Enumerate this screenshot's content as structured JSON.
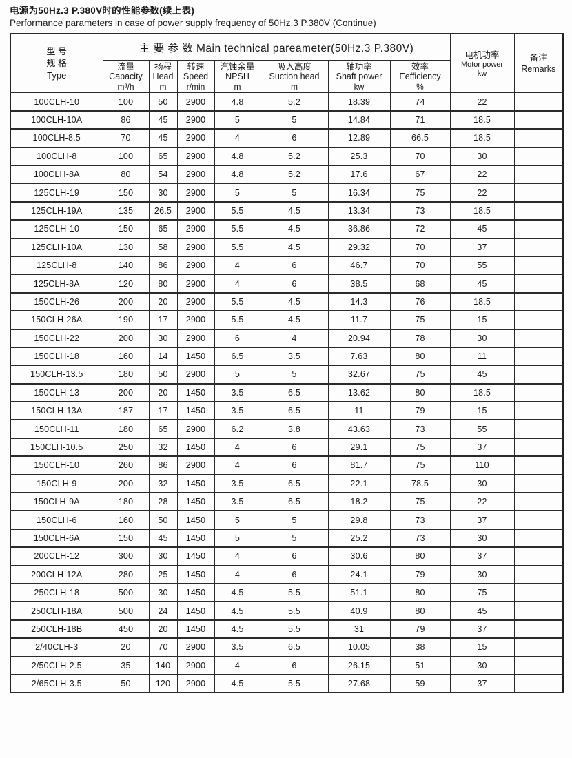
{
  "titles": {
    "zh": "电源为50Hz.3 P.380V时的性能参数(续上表)",
    "en": "Performance parameters in case of power supply frequency of 50Hz.3 P.380V (Continue)"
  },
  "table": {
    "group_header": "主 要 参 数  Main technical pareameter(50Hz.3 P.380V)",
    "type_col": {
      "line1": "型  号",
      "line2": "规  格",
      "line3": "Type"
    },
    "sub_columns": [
      {
        "zh": "流量",
        "en": "Capacity",
        "unit": "m³/h"
      },
      {
        "zh": "扬程",
        "en": "Head",
        "unit": "m"
      },
      {
        "zh": "转速",
        "en": "Speed",
        "unit": "r/min"
      },
      {
        "zh": "汽蚀余量",
        "en": "NPSH",
        "unit": "m"
      },
      {
        "zh": "吸入高度",
        "en": "Suction head",
        "unit": "m"
      },
      {
        "zh": "轴功率",
        "en": "Shaft power",
        "unit": "kw"
      },
      {
        "zh": "效率",
        "en": "Eefficiency",
        "unit": "%"
      }
    ],
    "motor_col": {
      "zh": "电机功率",
      "en": "Motor power",
      "unit": "kw"
    },
    "remarks_col": {
      "zh": "备注",
      "en": "Remarks"
    },
    "rows": [
      [
        "100CLH-10",
        "100",
        "50",
        "2900",
        "4.8",
        "5.2",
        "18.39",
        "74",
        "22",
        ""
      ],
      [
        "100CLH-10A",
        "86",
        "45",
        "2900",
        "5",
        "5",
        "14.84",
        "71",
        "18.5",
        ""
      ],
      [
        "100CLH-8.5",
        "70",
        "45",
        "2900",
        "4",
        "6",
        "12.89",
        "66.5",
        "18.5",
        ""
      ],
      [
        "100CLH-8",
        "100",
        "65",
        "2900",
        "4.8",
        "5.2",
        "25.3",
        "70",
        "30",
        ""
      ],
      [
        "100CLH-8A",
        "80",
        "54",
        "2900",
        "4.8",
        "5.2",
        "17.6",
        "67",
        "22",
        ""
      ],
      [
        "125CLH-19",
        "150",
        "30",
        "2900",
        "5",
        "5",
        "16.34",
        "75",
        "22",
        ""
      ],
      [
        "125CLH-19A",
        "135",
        "26.5",
        "2900",
        "5.5",
        "4.5",
        "13.34",
        "73",
        "18.5",
        ""
      ],
      [
        "125CLH-10",
        "150",
        "65",
        "2900",
        "5.5",
        "4.5",
        "36.86",
        "72",
        "45",
        ""
      ],
      [
        "125CLH-10A",
        "130",
        "58",
        "2900",
        "5.5",
        "4.5",
        "29.32",
        "70",
        "37",
        ""
      ],
      [
        "125CLH-8",
        "140",
        "86",
        "2900",
        "4",
        "6",
        "46.7",
        "70",
        "55",
        ""
      ],
      [
        "125CLH-8A",
        "120",
        "80",
        "2900",
        "4",
        "6",
        "38.5",
        "68",
        "45",
        ""
      ],
      [
        "150CLH-26",
        "200",
        "20",
        "2900",
        "5.5",
        "4.5",
        "14.3",
        "76",
        "18.5",
        ""
      ],
      [
        "150CLH-26A",
        "190",
        "17",
        "2900",
        "5.5",
        "4.5",
        "11.7",
        "75",
        "15",
        ""
      ],
      [
        "150CLH-22",
        "200",
        "30",
        "2900",
        "6",
        "4",
        "20.94",
        "78",
        "30",
        ""
      ],
      [
        "150CLH-18",
        "160",
        "14",
        "1450",
        "6.5",
        "3.5",
        "7.63",
        "80",
        "11",
        ""
      ],
      [
        "150CLH-13.5",
        "180",
        "50",
        "2900",
        "5",
        "5",
        "32.67",
        "75",
        "45",
        ""
      ],
      [
        "150CLH-13",
        "200",
        "20",
        "1450",
        "3.5",
        "6.5",
        "13.62",
        "80",
        "18.5",
        ""
      ],
      [
        "150CLH-13A",
        "187",
        "17",
        "1450",
        "3.5",
        "6.5",
        "11",
        "79",
        "15",
        ""
      ],
      [
        "150CLH-11",
        "180",
        "65",
        "2900",
        "6.2",
        "3.8",
        "43.63",
        "73",
        "55",
        ""
      ],
      [
        "150CLH-10.5",
        "250",
        "32",
        "1450",
        "4",
        "6",
        "29.1",
        "75",
        "37",
        ""
      ],
      [
        "150CLH-10",
        "260",
        "86",
        "2900",
        "4",
        "6",
        "81.7",
        "75",
        "110",
        ""
      ],
      [
        "150CLH-9",
        "200",
        "32",
        "1450",
        "3.5",
        "6.5",
        "22.1",
        "78.5",
        "30",
        ""
      ],
      [
        "150CLH-9A",
        "180",
        "28",
        "1450",
        "3.5",
        "6.5",
        "18.2",
        "75",
        "22",
        ""
      ],
      [
        "150CLH-6",
        "160",
        "50",
        "1450",
        "5",
        "5",
        "29.8",
        "73",
        "37",
        ""
      ],
      [
        "150CLH-6A",
        "150",
        "45",
        "1450",
        "5",
        "5",
        "25.2",
        "73",
        "30",
        ""
      ],
      [
        "200CLH-12",
        "300",
        "30",
        "1450",
        "4",
        "6",
        "30.6",
        "80",
        "37",
        ""
      ],
      [
        "200CLH-12A",
        "280",
        "25",
        "1450",
        "4",
        "6",
        "24.1",
        "79",
        "30",
        ""
      ],
      [
        "250CLH-18",
        "500",
        "30",
        "1450",
        "4.5",
        "5.5",
        "51.1",
        "80",
        "75",
        ""
      ],
      [
        "250CLH-18A",
        "500",
        "24",
        "1450",
        "4.5",
        "5.5",
        "40.9",
        "80",
        "45",
        ""
      ],
      [
        "250CLH-18B",
        "450",
        "20",
        "1450",
        "4.5",
        "5.5",
        "31",
        "79",
        "37",
        ""
      ],
      [
        "2/40CLH-3",
        "20",
        "70",
        "2900",
        "3.5",
        "6.5",
        "10.05",
        "38",
        "15",
        ""
      ],
      [
        "2/50CLH-2.5",
        "35",
        "140",
        "2900",
        "4",
        "6",
        "26.15",
        "51",
        "30",
        ""
      ],
      [
        "2/65CLH-3.5",
        "50",
        "120",
        "2900",
        "4.5",
        "5.5",
        "27.68",
        "59",
        "37",
        ""
      ]
    ]
  }
}
